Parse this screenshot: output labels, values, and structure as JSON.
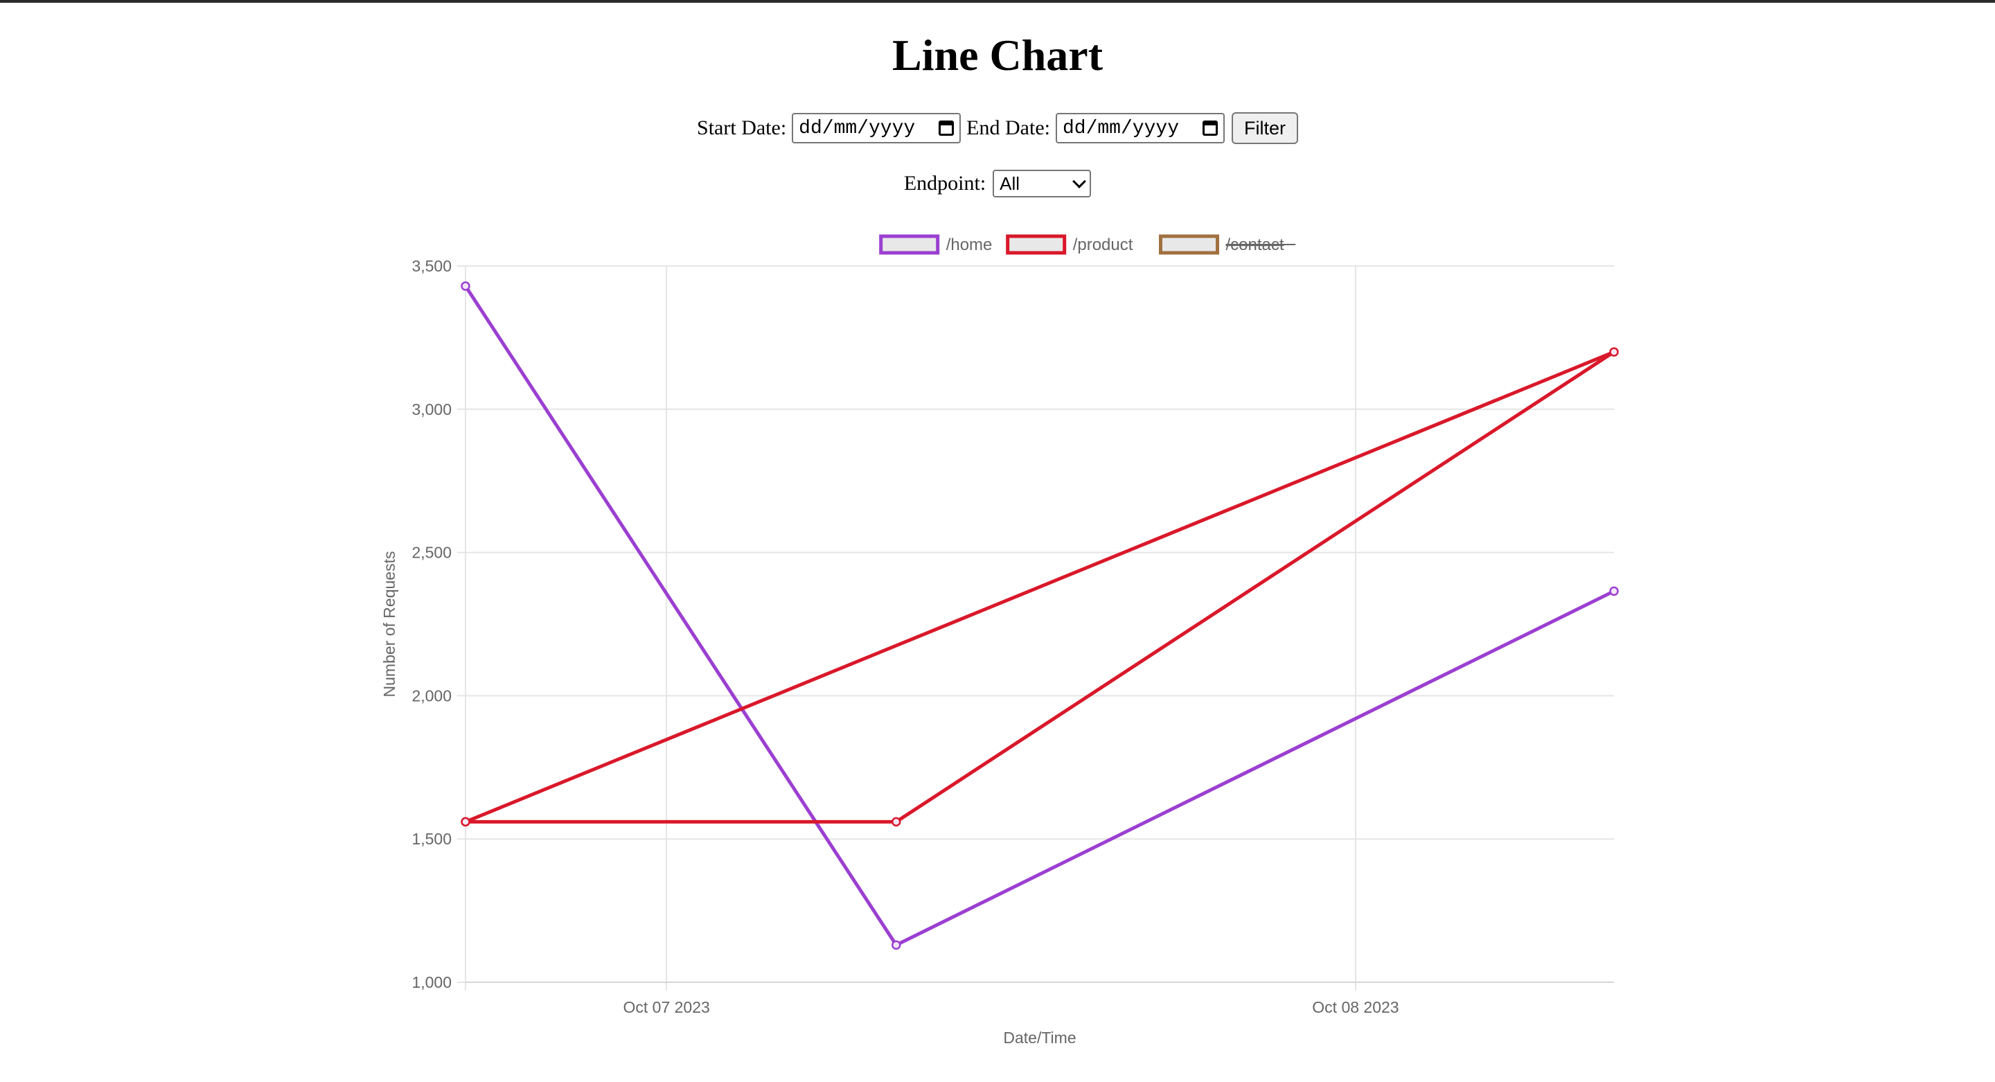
{
  "page": {
    "title": "Line Chart"
  },
  "filters": {
    "start_label": "Start Date:",
    "start_value": "dd/mm/yyyy",
    "end_label": "End Date:",
    "end_value": "dd/mm/yyyy",
    "filter_button": "Filter",
    "endpoint_label": "Endpoint:",
    "endpoint_selected": "All"
  },
  "chart_data": {
    "type": "line",
    "title": "",
    "xlabel": "Date/Time",
    "ylabel": "Number of Requests",
    "ylim": [
      1000,
      3500
    ],
    "y_ticks": [
      {
        "value": 1000,
        "label": "1,000"
      },
      {
        "value": 1500,
        "label": "1,500"
      },
      {
        "value": 2000,
        "label": "2,000"
      },
      {
        "value": 2500,
        "label": "2,500"
      },
      {
        "value": 3000,
        "label": "3,000"
      },
      {
        "value": 3500,
        "label": "3,500"
      }
    ],
    "x_range": [
      "2023-10-06 17:00",
      "2023-10-08 09:00"
    ],
    "x_ticks": [
      {
        "value": "2023-10-07 00:00",
        "label": "Oct 07 2023"
      },
      {
        "value": "2023-10-08 00:00",
        "label": "Oct 08 2023"
      }
    ],
    "grid": true,
    "legend_position": "top",
    "series": [
      {
        "name": "/home",
        "color": "#9b3fd1",
        "hidden": false,
        "points": [
          {
            "x": "2023-10-06 17:00",
            "y": 3430
          },
          {
            "x": "2023-10-07 08:00",
            "y": 1130
          },
          {
            "x": "2023-10-08 09:00",
            "y": 2365
          }
        ]
      },
      {
        "name": "/product",
        "color": "#d9182a",
        "hidden": false,
        "points": [
          {
            "x": "2023-10-06 17:00",
            "y": 1560
          },
          {
            "x": "2023-10-08 09:00",
            "y": 3200
          },
          {
            "x": "2023-10-07 08:00",
            "y": 1560
          },
          {
            "x": "2023-10-06 17:00",
            "y": 1560
          }
        ]
      },
      {
        "name": "/contact",
        "color": "#a0703f",
        "hidden": true,
        "points": []
      }
    ]
  }
}
